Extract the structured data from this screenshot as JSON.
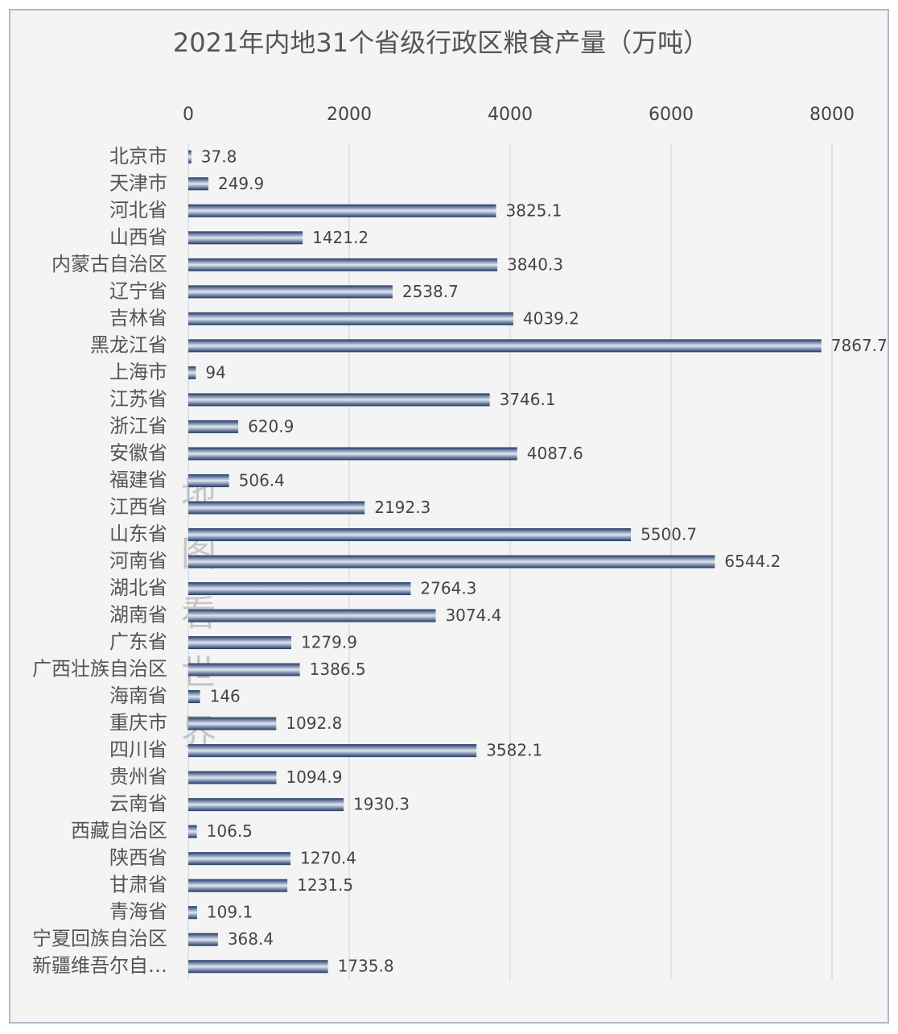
{
  "chart_data": {
    "type": "barh",
    "title": "2021年内地31个省级行政区粮食产量（万吨）",
    "watermark": "地图看世界",
    "categories": [
      "北京市",
      "天津市",
      "河北省",
      "山西省",
      "内蒙古自治区",
      "辽宁省",
      "吉林省",
      "黑龙江省",
      "上海市",
      "江苏省",
      "浙江省",
      "安徽省",
      "福建省",
      "江西省",
      "山东省",
      "河南省",
      "湖北省",
      "湖南省",
      "广东省",
      "广西壮族自治区",
      "海南省",
      "重庆市",
      "四川省",
      "贵州省",
      "云南省",
      "西藏自治区",
      "陕西省",
      "甘肃省",
      "青海省",
      "宁夏回族自治区",
      "新疆维吾尔自…"
    ],
    "values": [
      37.8,
      249.9,
      3825.1,
      1421.2,
      3840.3,
      2538.7,
      4039.2,
      7867.7,
      94,
      3746.1,
      620.9,
      4087.6,
      506.4,
      2192.3,
      5500.7,
      6544.2,
      2764.3,
      3074.4,
      1279.9,
      1386.5,
      146,
      1092.8,
      3582.1,
      1094.9,
      1930.3,
      106.5,
      1270.4,
      1231.5,
      109.1,
      368.4,
      1735.8
    ],
    "color": "#1f3864",
    "xlim": [
      0,
      8000
    ],
    "xticks": [
      0,
      2000,
      4000,
      6000,
      8000
    ],
    "grid": true
  }
}
